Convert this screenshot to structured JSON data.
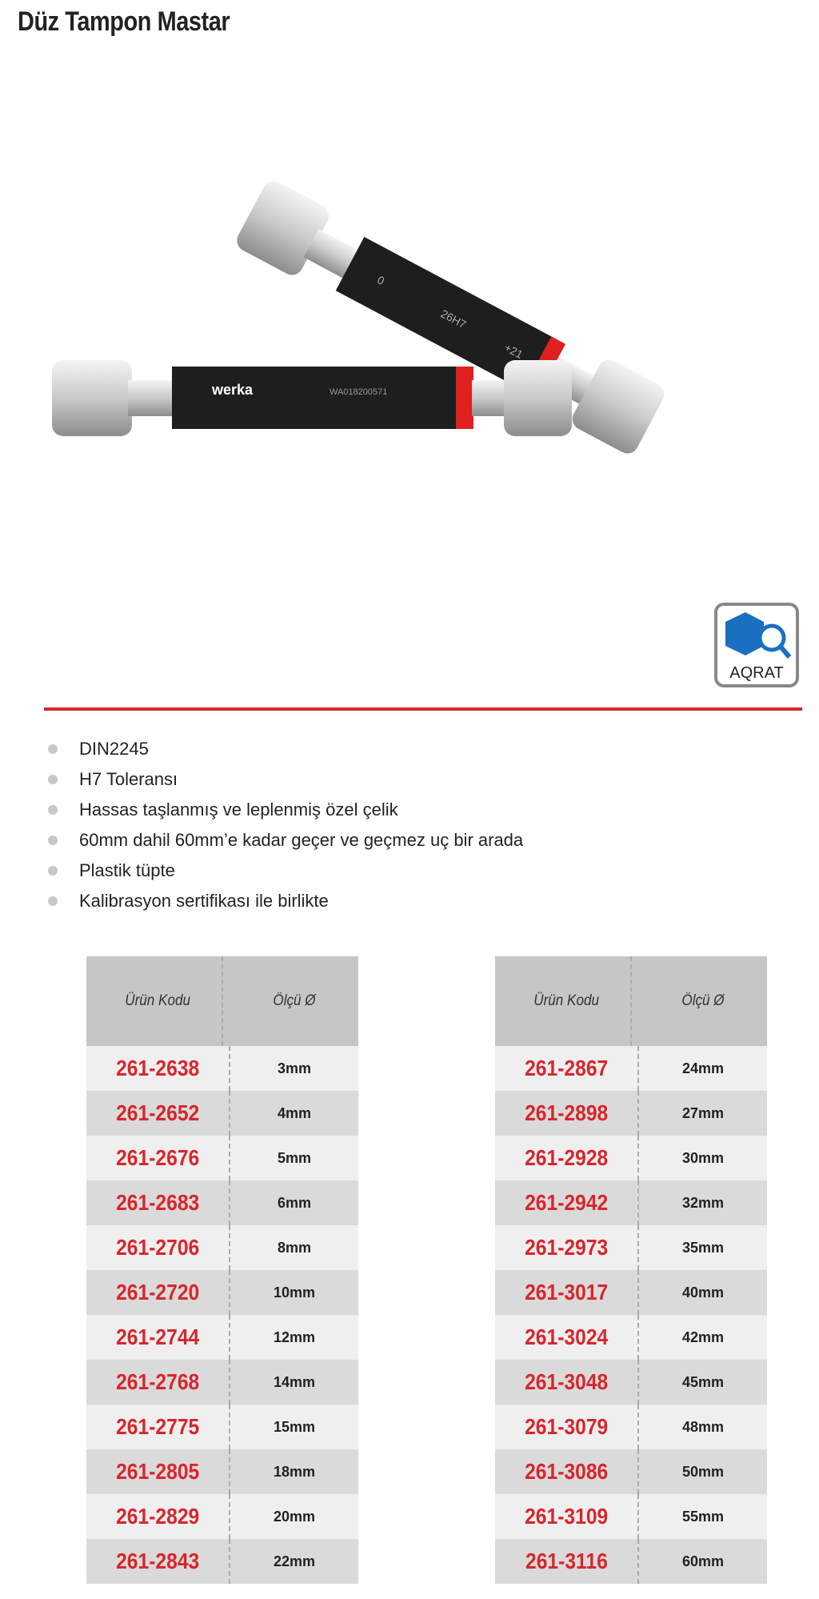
{
  "title": "Düz Tampon Mastar",
  "product_image": {
    "engraving_left": "werka",
    "serial_left": "WA018200571",
    "marking_right_1": "0",
    "marking_right_2": "26H7",
    "marking_right_3": "+21"
  },
  "badge": {
    "label": "AQRAT",
    "color": "#1a6fc0"
  },
  "features": [
    "DIN2245",
    "H7 Toleransı",
    "Hassas taşlanmış ve leplenmiş özel çelik",
    "60mm dahil 60mm’e kadar geçer ve geçmez uç bir arada",
    "Plastik tüpte",
    "Kalibrasyon sertifikası ile birlikte"
  ],
  "table_headers": {
    "code": "Ürün Kodu",
    "size": "Ölçü Ø"
  },
  "table_left": [
    {
      "code": "261-2638",
      "size": "3mm"
    },
    {
      "code": "261-2652",
      "size": "4mm"
    },
    {
      "code": "261-2676",
      "size": "5mm"
    },
    {
      "code": "261-2683",
      "size": "6mm"
    },
    {
      "code": "261-2706",
      "size": "8mm"
    },
    {
      "code": "261-2720",
      "size": "10mm"
    },
    {
      "code": "261-2744",
      "size": "12mm"
    },
    {
      "code": "261-2768",
      "size": "14mm"
    },
    {
      "code": "261-2775",
      "size": "15mm"
    },
    {
      "code": "261-2805",
      "size": "18mm"
    },
    {
      "code": "261-2829",
      "size": "20mm"
    },
    {
      "code": "261-2843",
      "size": "22mm"
    }
  ],
  "table_right": [
    {
      "code": "261-2867",
      "size": "24mm"
    },
    {
      "code": "261-2898",
      "size": "27mm"
    },
    {
      "code": "261-2928",
      "size": "30mm"
    },
    {
      "code": "261-2942",
      "size": "32mm"
    },
    {
      "code": "261-2973",
      "size": "35mm"
    },
    {
      "code": "261-3017",
      "size": "40mm"
    },
    {
      "code": "261-3024",
      "size": "42mm"
    },
    {
      "code": "261-3048",
      "size": "45mm"
    },
    {
      "code": "261-3079",
      "size": "48mm"
    },
    {
      "code": "261-3086",
      "size": "50mm"
    },
    {
      "code": "261-3109",
      "size": "55mm"
    },
    {
      "code": "261-3116",
      "size": "60mm"
    }
  ],
  "colors": {
    "accent": "#d8262c",
    "header_bg": "#c6c6c6"
  }
}
